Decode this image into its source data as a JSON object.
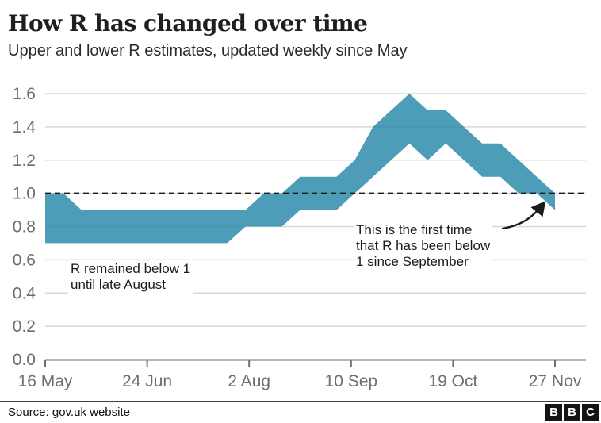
{
  "header": {
    "title": "How R has changed over time",
    "subtitle": "Upper and lower R estimates, updated weekly since May"
  },
  "chart_data": {
    "type": "area",
    "description": "Range band of upper and lower R estimates, weekly",
    "x": [
      "16 May",
      "23 May",
      "30 May",
      "6 Jun",
      "13 Jun",
      "20 Jun",
      "27 Jun",
      "4 Jul",
      "11 Jul",
      "18 Jul",
      "25 Jul",
      "1 Aug",
      "8 Aug",
      "15 Aug",
      "22 Aug",
      "29 Aug",
      "5 Sep",
      "12 Sep",
      "19 Sep",
      "26 Sep",
      "3 Oct",
      "10 Oct",
      "17 Oct",
      "24 Oct",
      "31 Oct",
      "7 Nov",
      "14 Nov",
      "21 Nov",
      "27 Nov"
    ],
    "series": [
      {
        "name": "lower",
        "values": [
          0.7,
          0.7,
          0.7,
          0.7,
          0.7,
          0.7,
          0.7,
          0.7,
          0.7,
          0.7,
          0.7,
          0.8,
          0.8,
          0.8,
          0.9,
          0.9,
          0.9,
          1.0,
          1.1,
          1.2,
          1.3,
          1.2,
          1.3,
          1.2,
          1.1,
          1.1,
          1.0,
          1.0,
          0.9
        ]
      },
      {
        "name": "upper",
        "values": [
          1.0,
          1.0,
          0.9,
          0.9,
          0.9,
          0.9,
          0.9,
          0.9,
          0.9,
          0.9,
          0.9,
          0.9,
          1.0,
          1.0,
          1.1,
          1.1,
          1.1,
          1.2,
          1.4,
          1.5,
          1.6,
          1.5,
          1.5,
          1.4,
          1.3,
          1.3,
          1.2,
          1.1,
          1.0
        ]
      }
    ],
    "x_tick_labels": [
      "16 May",
      "24 Jun",
      "2 Aug",
      "10 Sep",
      "19 Oct",
      "27 Nov"
    ],
    "y_tick_labels": [
      "0.0",
      "0.2",
      "0.4",
      "0.6",
      "0.8",
      "1.0",
      "1.2",
      "1.4",
      "1.6"
    ],
    "ylim": [
      0,
      1.6
    ],
    "grid": "horizontal",
    "legend": "none",
    "reference_line": {
      "value": 1.0,
      "style": "dashed",
      "color": "#1a1a1a"
    },
    "band_color": "#2e8bac",
    "gridline_color": "#d8d8d8",
    "axis_color": "#6f6f6f",
    "tick_label_color": "#6e6e6e",
    "annotations": [
      {
        "lines": [
          "R remained below 1",
          "until late August"
        ]
      },
      {
        "lines": [
          "This is the first time",
          "that R has been below",
          "1 since September"
        ],
        "arrow": "points to final band segment dipping below 1"
      }
    ]
  },
  "footer": {
    "source": "Source: gov.uk website",
    "logo_letters": [
      "B",
      "B",
      "C"
    ]
  }
}
